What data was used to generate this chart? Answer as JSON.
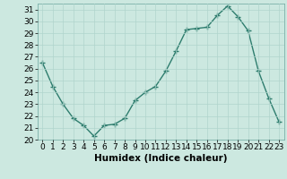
{
  "x": [
    0,
    1,
    2,
    3,
    4,
    5,
    6,
    7,
    8,
    9,
    10,
    11,
    12,
    13,
    14,
    15,
    16,
    17,
    18,
    19,
    20,
    21,
    22,
    23
  ],
  "y": [
    26.5,
    24.5,
    23.0,
    21.8,
    21.2,
    20.3,
    21.2,
    21.3,
    21.8,
    23.3,
    24.0,
    24.5,
    25.8,
    27.5,
    29.3,
    29.4,
    29.5,
    30.5,
    31.3,
    30.4,
    29.2,
    25.8,
    23.5,
    21.5
  ],
  "line_color": "#2e7d6e",
  "marker": "+",
  "marker_size": 4,
  "line_width": 1.0,
  "xlabel": "Humidex (Indice chaleur)",
  "ylim": [
    20,
    31.5
  ],
  "yticks": [
    20,
    21,
    22,
    23,
    24,
    25,
    26,
    27,
    28,
    29,
    30,
    31
  ],
  "xticks": [
    0,
    1,
    2,
    3,
    4,
    5,
    6,
    7,
    8,
    9,
    10,
    11,
    12,
    13,
    14,
    15,
    16,
    17,
    18,
    19,
    20,
    21,
    22,
    23
  ],
  "bg_color": "#cce8e0",
  "grid_color": "#b0d4cc",
  "tick_fontsize": 6.5,
  "label_fontsize": 7.5
}
